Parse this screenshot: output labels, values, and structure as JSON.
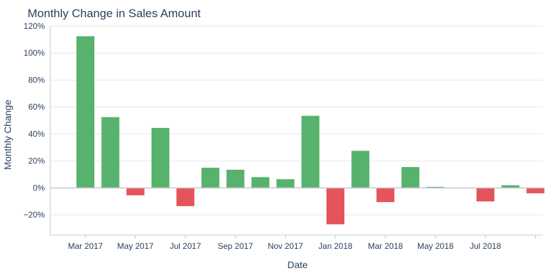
{
  "chart_data": {
    "type": "bar",
    "title": "Monthly Change in Sales Amount",
    "xlabel": "Date",
    "ylabel": "Monthly Change",
    "ylim": [
      -35,
      120
    ],
    "yticks": [
      -20,
      0,
      20,
      40,
      60,
      80,
      100,
      120
    ],
    "ytick_labels": [
      "−20%",
      "0%",
      "20%",
      "40%",
      "60%",
      "80%",
      "100%",
      "120%"
    ],
    "xtick_labels": [
      "Mar 2017",
      "May 2017",
      "Jul 2017",
      "Sep 2017",
      "Nov 2017",
      "Jan 2018",
      "Mar 2018",
      "May 2018",
      "Jul 2018"
    ],
    "categories": [
      "Mar 2017",
      "Apr 2017",
      "May 2017",
      "Jun 2017",
      "Jul 2017",
      "Aug 2017",
      "Sep 2017",
      "Oct 2017",
      "Nov 2017",
      "Dec 2017",
      "Jan 2018",
      "Feb 2018",
      "Mar 2018",
      "Apr 2018",
      "May 2018",
      "Jun 2018",
      "Jul 2018",
      "Aug 2018",
      "Sep 2018"
    ],
    "values": [
      112.5,
      52.5,
      -5.5,
      44.5,
      -13.5,
      15,
      13.5,
      8,
      6.5,
      53.5,
      -27,
      27.5,
      -10.5,
      15.5,
      0.8,
      0,
      -10,
      2,
      -4
    ],
    "colors": {
      "positive": "#57b26d",
      "negative": "#e5545a"
    },
    "grid": true,
    "legend": "none"
  }
}
